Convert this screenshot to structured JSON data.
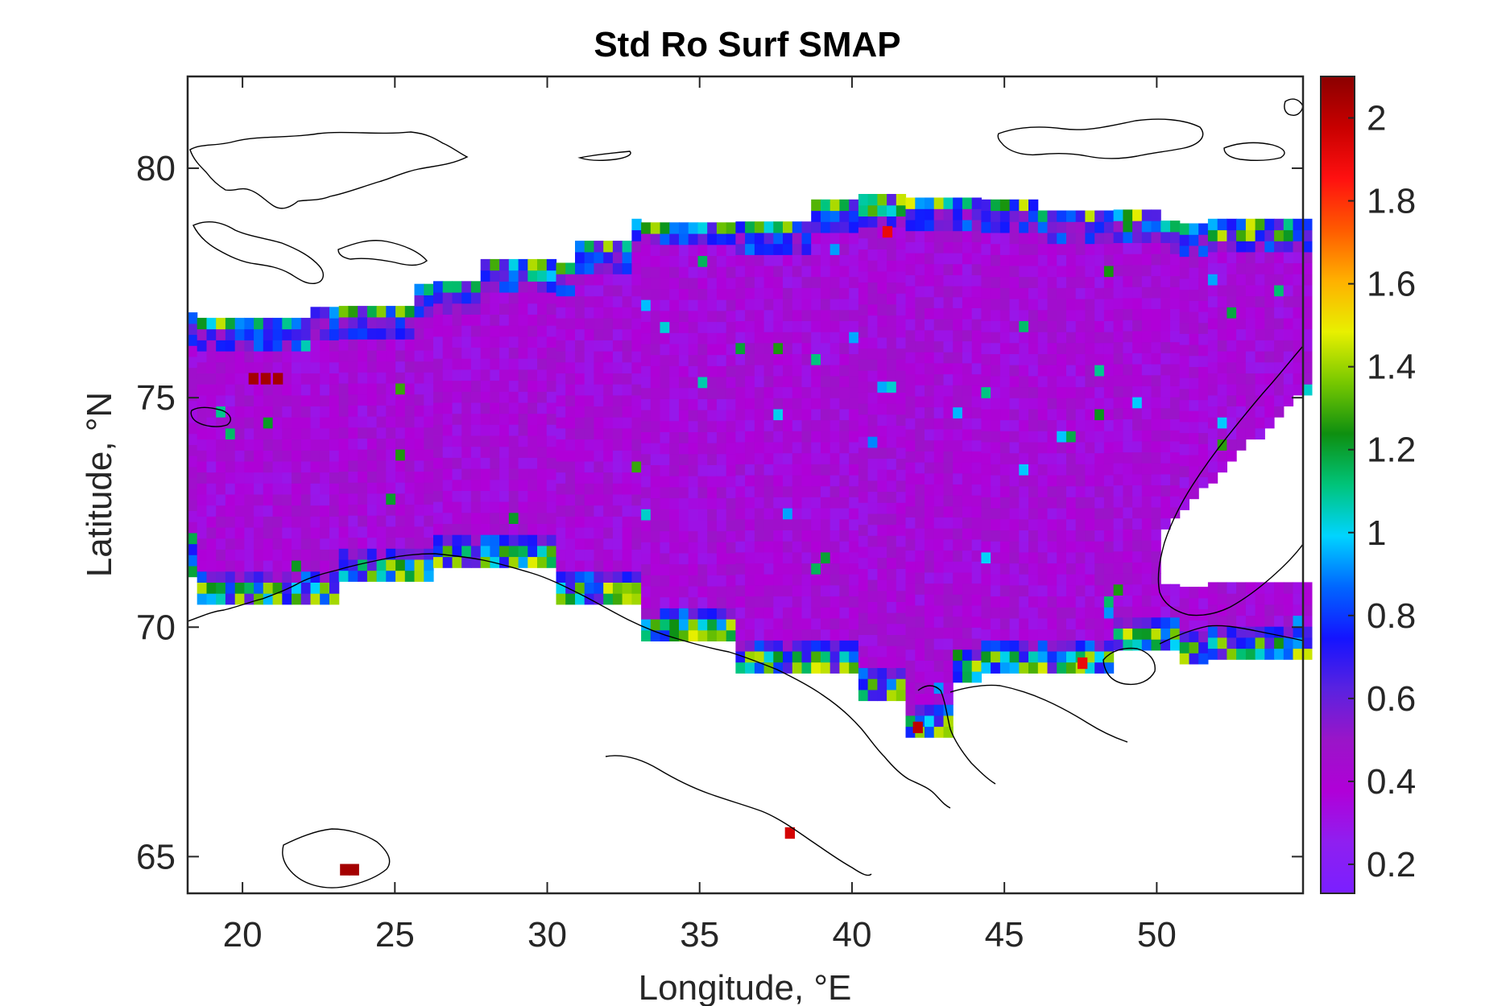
{
  "chart_data": {
    "type": "heatmap",
    "title": "Std Ro Surf SMAP",
    "xlabel": "Longitude, °E",
    "ylabel": "Latitude, °N",
    "xlim": [
      18.2,
      54.8
    ],
    "ylim": [
      64.2,
      82.0
    ],
    "xticks": [
      20,
      25,
      30,
      35,
      40,
      45,
      50
    ],
    "xtick_labels": [
      "20",
      "25",
      "30",
      "35",
      "40",
      "45",
      "50"
    ],
    "yticks": [
      65,
      70,
      75,
      80
    ],
    "ytick_labels": [
      "65",
      "70",
      "75",
      "80"
    ],
    "colorbar": {
      "range": [
        0.13,
        2.1
      ],
      "ticks": [
        0.2,
        0.4,
        0.6,
        0.8,
        1,
        1.2,
        1.4,
        1.6,
        1.8,
        2
      ],
      "tick_labels": [
        "0.2",
        "0.4",
        "0.6",
        "0.8",
        "1",
        "1.2",
        "1.4",
        "1.6",
        "1.8",
        "2"
      ],
      "colormap": [
        "#7a1fff",
        "#8f1ff0",
        "#b000d8",
        "#9a15c8",
        "#5a22e0",
        "#1414ff",
        "#0066ff",
        "#00d4ff",
        "#00c47a",
        "#0e8f10",
        "#77c800",
        "#e8f000",
        "#ffb000",
        "#ff5a00",
        "#ff1010",
        "#c80000",
        "#8b0000"
      ]
    },
    "grid": false,
    "approximate_field": {
      "description_of_values": "std of surface Ro, mostly 0.3–0.5 over open Barents Sea; 0.6–1.2 near coasts; up to ~2.1 in isolated coastal cells",
      "lon_step": 0.31,
      "lat_step": 0.24
    },
    "high_value_cells": [
      {
        "lon": 20.2,
        "lat": 75.3,
        "value": 2.05
      },
      {
        "lon": 20.6,
        "lat": 75.3,
        "value": 2.05
      },
      {
        "lon": 21.0,
        "lat": 75.3,
        "value": 2.05
      },
      {
        "lon": 23.2,
        "lat": 64.6,
        "value": 2.05
      },
      {
        "lon": 23.5,
        "lat": 64.6,
        "value": 2.05
      },
      {
        "lon": 42.0,
        "lat": 67.7,
        "value": 2.0
      },
      {
        "lon": 47.4,
        "lat": 69.1,
        "value": 1.9
      },
      {
        "lon": 37.8,
        "lat": 65.4,
        "value": 1.95
      },
      {
        "lon": 41.0,
        "lat": 78.5,
        "value": 1.9
      }
    ]
  }
}
